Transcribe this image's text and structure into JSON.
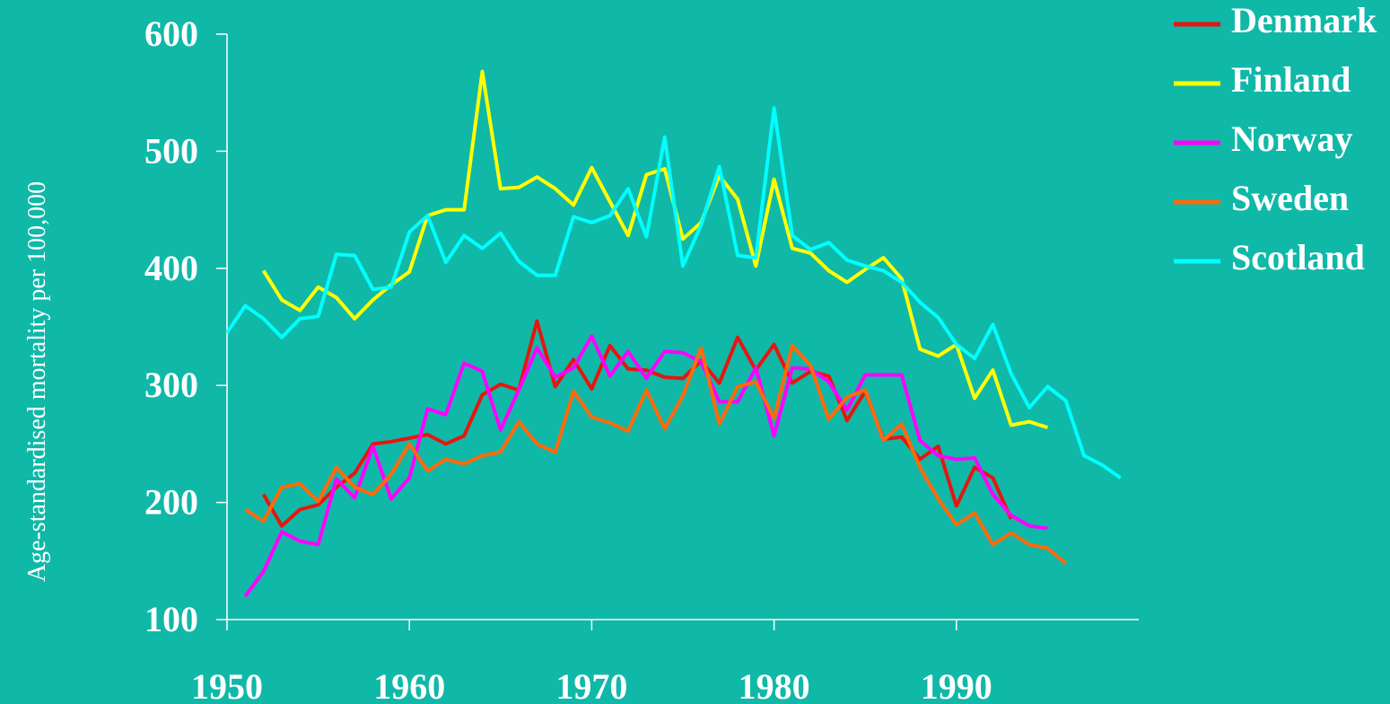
{
  "chart_data": {
    "type": "line",
    "y_label": "Age-standardised mortality per 100,000",
    "x": [
      1950,
      1951,
      1952,
      1953,
      1954,
      1955,
      1956,
      1957,
      1958,
      1959,
      1960,
      1961,
      1962,
      1963,
      1964,
      1965,
      1966,
      1967,
      1968,
      1969,
      1970,
      1971,
      1972,
      1973,
      1974,
      1975,
      1976,
      1977,
      1978,
      1979,
      1980,
      1981,
      1982,
      1983,
      1984,
      1985,
      1986,
      1987,
      1988,
      1989,
      1990,
      1991,
      1992,
      1993,
      1994,
      1995,
      1996,
      1997,
      1998,
      1999
    ],
    "xlim": [
      1950,
      2000
    ],
    "xticks": [
      1950,
      1960,
      1970,
      1980,
      1990
    ],
    "ylim": [
      100,
      600
    ],
    "yticks": [
      100,
      200,
      300,
      400,
      500,
      600
    ],
    "legend": "top-right",
    "series": [
      {
        "name": "Denmark",
        "color": "#e8150f",
        "values": [
          null,
          null,
          207,
          180,
          194,
          198,
          213,
          225,
          250,
          252,
          255,
          258,
          250,
          257,
          292,
          301,
          296,
          355,
          299,
          322,
          297,
          334,
          314,
          313,
          307,
          306,
          321,
          302,
          341,
          313,
          335,
          302,
          312,
          308,
          270,
          295,
          254,
          256,
          237,
          248,
          197,
          230,
          221,
          186,
          null,
          null,
          null,
          null,
          null,
          null
        ]
      },
      {
        "name": "Finland",
        "color": "#ffff00",
        "values": [
          null,
          null,
          398,
          373,
          364,
          384,
          375,
          357,
          373,
          386,
          397,
          445,
          450,
          450,
          568,
          468,
          469,
          478,
          468,
          454,
          486,
          457,
          428,
          480,
          485,
          425,
          439,
          479,
          459,
          402,
          476,
          417,
          413,
          398,
          388,
          399,
          409,
          391,
          331,
          325,
          335,
          289,
          313,
          266,
          269,
          264,
          null,
          null,
          null,
          null
        ]
      },
      {
        "name": "Norway",
        "color": "#ff00ff",
        "values": [
          null,
          120,
          141,
          175,
          167,
          164,
          220,
          204,
          248,
          203,
          221,
          280,
          275,
          319,
          312,
          262,
          296,
          332,
          307,
          315,
          342,
          308,
          329,
          306,
          329,
          328,
          320,
          286,
          286,
          315,
          257,
          315,
          314,
          303,
          279,
          309,
          309,
          309,
          253,
          240,
          237,
          238,
          207,
          189,
          180,
          178,
          null,
          null,
          null,
          null
        ]
      },
      {
        "name": "Sweden",
        "color": "#ff6a0a",
        "values": [
          null,
          194,
          184,
          213,
          216,
          201,
          230,
          213,
          207,
          224,
          250,
          227,
          237,
          233,
          240,
          243,
          269,
          250,
          243,
          295,
          273,
          268,
          261,
          296,
          263,
          291,
          332,
          267,
          299,
          303,
          272,
          334,
          317,
          271,
          290,
          296,
          253,
          267,
          230,
          203,
          181,
          191,
          164,
          174,
          164,
          161,
          148,
          null,
          null,
          null
        ]
      },
      {
        "name": "Scotland",
        "color": "#00ffff",
        "values": [
          345,
          368,
          357,
          341,
          357,
          359,
          412,
          411,
          382,
          384,
          431,
          445,
          405,
          428,
          417,
          430,
          406,
          394,
          394,
          444,
          439,
          445,
          468,
          427,
          512,
          402,
          437,
          487,
          411,
          409,
          537,
          428,
          416,
          422,
          407,
          402,
          398,
          388,
          371,
          358,
          335,
          323,
          352,
          310,
          281,
          299,
          287,
          240,
          232,
          221
        ]
      }
    ]
  }
}
